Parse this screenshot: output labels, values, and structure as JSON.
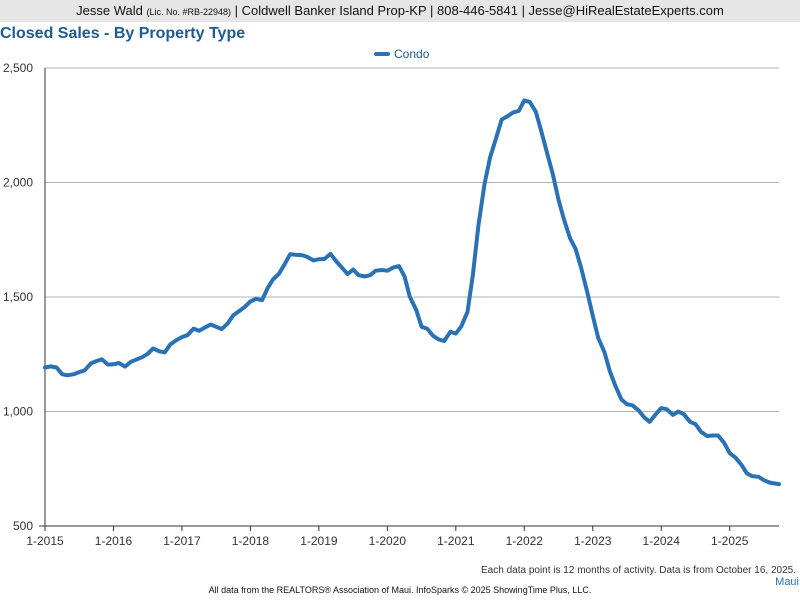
{
  "header": {
    "name": "Jesse Wald",
    "license": "(Lic. No. #RB-22948)",
    "rest": "| Coldwell Banker Island Prop-KP | 808-446-5841 | Jesse@HiRealEstateExperts.com"
  },
  "region_label": "Maui",
  "footnote": "Each data point is 12 months of activity. Data is from October 16, 2025.",
  "credits": "All data from the REALTORS® Association of Maui. InfoSparks © 2025 ShowingTime Plus, LLC.",
  "colors": {
    "series": "#2a72b5",
    "title": "#1f5a91",
    "grid": "#b3b3b3"
  },
  "chart_data": {
    "type": "line",
    "title": "Closed Sales - By Property Type",
    "xlabel": "",
    "ylabel": "",
    "ylim": [
      500,
      2500
    ],
    "yticks": [
      500,
      1000,
      1500,
      2000,
      2500
    ],
    "ytick_labels": [
      "500",
      "1,000",
      "1,500",
      "2,000",
      "2,500"
    ],
    "xlim": [
      2015.0,
      2025.72
    ],
    "xticks": [
      2015,
      2016,
      2017,
      2018,
      2019,
      2020,
      2021,
      2022,
      2023,
      2024,
      2025
    ],
    "xtick_labels": [
      "1-2015",
      "1-2016",
      "1-2017",
      "1-2018",
      "1-2019",
      "1-2020",
      "1-2021",
      "1-2022",
      "1-2023",
      "1-2024",
      "1-2025"
    ],
    "legend_position": "top-center",
    "series": [
      {
        "name": "Condo",
        "x": [
          2015.0,
          2015.08,
          2015.17,
          2015.25,
          2015.33,
          2015.42,
          2015.5,
          2015.58,
          2015.67,
          2015.75,
          2015.83,
          2015.92,
          2016.0,
          2016.08,
          2016.17,
          2016.25,
          2016.33,
          2016.42,
          2016.5,
          2016.58,
          2016.67,
          2016.75,
          2016.83,
          2016.92,
          2017.0,
          2017.08,
          2017.17,
          2017.25,
          2017.33,
          2017.42,
          2017.5,
          2017.58,
          2017.67,
          2017.75,
          2017.83,
          2017.92,
          2018.0,
          2018.08,
          2018.17,
          2018.25,
          2018.33,
          2018.42,
          2018.5,
          2018.58,
          2018.67,
          2018.75,
          2018.83,
          2018.92,
          2019.0,
          2019.08,
          2019.17,
          2019.25,
          2019.33,
          2019.42,
          2019.5,
          2019.58,
          2019.67,
          2019.75,
          2019.83,
          2019.92,
          2020.0,
          2020.08,
          2020.17,
          2020.25,
          2020.33,
          2020.42,
          2020.5,
          2020.58,
          2020.67,
          2020.75,
          2020.83,
          2020.92,
          2021.0,
          2021.08,
          2021.17,
          2021.25,
          2021.33,
          2021.42,
          2021.5,
          2021.58,
          2021.67,
          2021.75,
          2021.83,
          2021.92,
          2022.0,
          2022.08,
          2022.17,
          2022.25,
          2022.33,
          2022.42,
          2022.5,
          2022.58,
          2022.67,
          2022.75,
          2022.83,
          2022.92,
          2023.0,
          2023.08,
          2023.17,
          2023.25,
          2023.33,
          2023.42,
          2023.5,
          2023.58,
          2023.67,
          2023.75,
          2023.83,
          2023.92,
          2024.0,
          2024.08,
          2024.17,
          2024.25,
          2024.33,
          2024.42,
          2024.5,
          2024.58,
          2024.67,
          2024.75,
          2024.83,
          2024.92,
          2025.0,
          2025.08,
          2025.17,
          2025.25,
          2025.33,
          2025.42,
          2025.5,
          2025.58,
          2025.67,
          2025.72
        ],
        "values": [
          1192,
          1197,
          1192,
          1163,
          1158,
          1163,
          1172,
          1180,
          1210,
          1220,
          1228,
          1205,
          1206,
          1212,
          1196,
          1216,
          1226,
          1237,
          1252,
          1275,
          1263,
          1258,
          1293,
          1312,
          1325,
          1333,
          1362,
          1353,
          1366,
          1380,
          1370,
          1360,
          1385,
          1420,
          1437,
          1457,
          1481,
          1492,
          1486,
          1538,
          1577,
          1603,
          1643,
          1687,
          1684,
          1683,
          1675,
          1660,
          1665,
          1666,
          1688,
          1657,
          1630,
          1600,
          1620,
          1595,
          1590,
          1595,
          1615,
          1618,
          1615,
          1628,
          1635,
          1590,
          1500,
          1445,
          1370,
          1362,
          1330,
          1315,
          1308,
          1348,
          1340,
          1372,
          1435,
          1598,
          1812,
          1995,
          2110,
          2185,
          2275,
          2288,
          2305,
          2313,
          2358,
          2352,
          2308,
          2222,
          2132,
          2033,
          1925,
          1838,
          1755,
          1710,
          1628,
          1520,
          1418,
          1322,
          1260,
          1175,
          1112,
          1052,
          1032,
          1027,
          1005,
          975,
          955,
          988,
          1015,
          1010,
          985,
          1000,
          988,
          955,
          945,
          912,
          893,
          895,
          895,
          863,
          818,
          800,
          768,
          730,
          718,
          715,
          700,
          690,
          685,
          683
        ]
      }
    ]
  }
}
